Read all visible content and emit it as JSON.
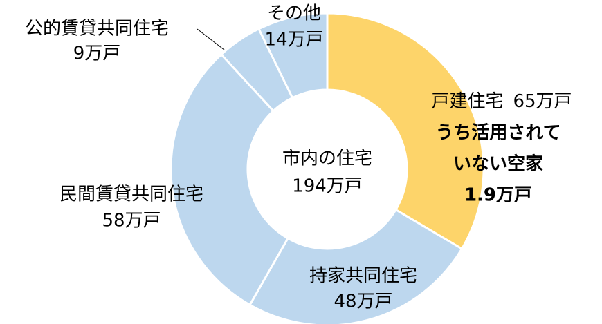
{
  "chart_data": {
    "type": "donut",
    "categories": [
      "戸建住宅",
      "持家共同住宅",
      "民間賃貸共同住宅",
      "公的賃貸共同住宅",
      "その他"
    ],
    "values": [
      65,
      48,
      58,
      9,
      14
    ],
    "value_labels": [
      "65万戸",
      "48万戸",
      "58万戸",
      "9万戸",
      "14万戸"
    ],
    "colors": [
      "#fdd46a",
      "#bdd7ee",
      "#bdd7ee",
      "#bdd7ee",
      "#bdd7ee"
    ],
    "center_text": [
      "市内の住宅",
      "194万戸"
    ],
    "annotation": [
      "うち活用されて",
      "いない空家",
      "1.9万戸"
    ],
    "annotation_color": "#ff0000"
  }
}
